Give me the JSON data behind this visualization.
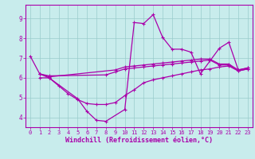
{
  "title": "",
  "xlabel": "Windchill (Refroidissement éolien,°C)",
  "ylabel": "",
  "xlim": [
    -0.5,
    23.5
  ],
  "ylim": [
    3.5,
    9.7
  ],
  "xticks": [
    0,
    1,
    2,
    3,
    4,
    5,
    6,
    7,
    8,
    9,
    10,
    11,
    12,
    13,
    14,
    15,
    16,
    17,
    18,
    19,
    20,
    21,
    22,
    23
  ],
  "yticks": [
    4,
    5,
    6,
    7,
    8,
    9
  ],
  "background_color": "#c8ecec",
  "grid_color": "#99cccc",
  "line_color": "#aa00aa",
  "line1_x": [
    0,
    1,
    2,
    5,
    6,
    7,
    8,
    10,
    11,
    12,
    13,
    14,
    15,
    16,
    17,
    18,
    20,
    21,
    22,
    23
  ],
  "line1_y": [
    7.1,
    6.2,
    6.0,
    4.95,
    4.3,
    3.85,
    3.8,
    4.4,
    8.8,
    8.75,
    9.2,
    8.05,
    7.45,
    7.45,
    7.3,
    6.2,
    7.5,
    7.8,
    6.4,
    6.5
  ],
  "line2_x": [
    1,
    2,
    9,
    10,
    11,
    12,
    13,
    14,
    15,
    16,
    17,
    18,
    19,
    20,
    21,
    22,
    23
  ],
  "line2_y": [
    6.2,
    6.05,
    6.4,
    6.55,
    6.6,
    6.65,
    6.7,
    6.75,
    6.8,
    6.85,
    6.9,
    6.95,
    6.95,
    6.7,
    6.7,
    6.4,
    6.5
  ],
  "line3_x": [
    1,
    2,
    8,
    9,
    10,
    11,
    12,
    13,
    14,
    15,
    16,
    17,
    18,
    19,
    20,
    21,
    22,
    23
  ],
  "line3_y": [
    6.2,
    6.1,
    6.15,
    6.3,
    6.45,
    6.5,
    6.55,
    6.6,
    6.65,
    6.7,
    6.75,
    6.8,
    6.85,
    6.9,
    6.65,
    6.65,
    6.35,
    6.45
  ],
  "line4_x": [
    1,
    2,
    3,
    4,
    5,
    6,
    7,
    8,
    9,
    10,
    11,
    12,
    13,
    14,
    15,
    16,
    17,
    18,
    19,
    20,
    21,
    22,
    23
  ],
  "line4_y": [
    6.0,
    6.0,
    5.6,
    5.2,
    4.9,
    4.7,
    4.65,
    4.65,
    4.75,
    5.1,
    5.4,
    5.75,
    5.9,
    6.0,
    6.1,
    6.2,
    6.3,
    6.4,
    6.45,
    6.55,
    6.6,
    6.35,
    6.45
  ],
  "marker_size": 3,
  "line_width": 0.9,
  "tick_fontsize": 5,
  "xlabel_fontsize": 6
}
